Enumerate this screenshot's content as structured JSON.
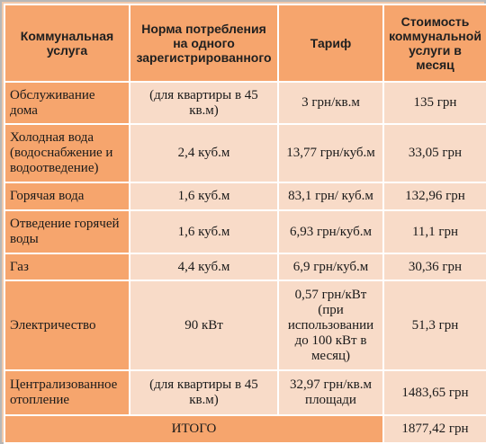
{
  "headers": [
    "Коммунальная услуга",
    "Норма потребления на одного зарегистрированного",
    "Тариф",
    "Стоимость коммунальной услуги в месяц"
  ],
  "rows": [
    [
      "Обслуживание дома",
      "(для квартиры в 45 кв.м)",
      "3 грн/кв.м",
      "135 грн"
    ],
    [
      "Холодная вода (водоснабжение и водоотведение)",
      "2,4 куб.м",
      "13,77 грн/куб.м",
      "33,05 грн"
    ],
    [
      "Горячая вода",
      "1,6 куб.м",
      "83,1 грн/ куб.м",
      "132,96 грн"
    ],
    [
      "Отведение горячей воды",
      "1,6 куб.м",
      "6,93 грн/куб.м",
      "11,1 грн"
    ],
    [
      "Газ",
      "4,4 куб.м",
      "6,9 грн/куб.м",
      "30,36 грн"
    ],
    [
      "Электричество",
      "90 кВт",
      "0,57 грн/кВт (при использовании до 100 кВт в месяц)",
      "51,3 грн"
    ],
    [
      "Централизованное отопление",
      "(для квартиры в 45 кв.м)",
      "32,97 грн/кв.м площади",
      "1483,65 грн"
    ]
  ],
  "total": {
    "label": "ИТОГО",
    "value": "1877,42 грн"
  }
}
